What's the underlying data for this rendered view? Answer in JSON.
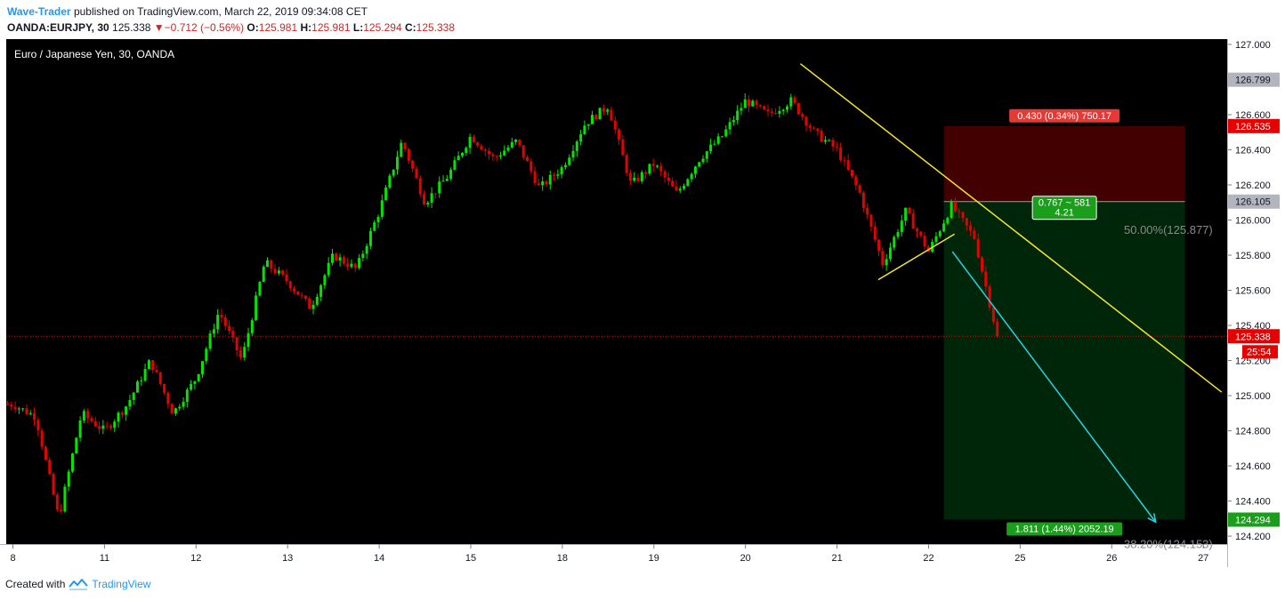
{
  "header": {
    "author": "Wave-Trader",
    "published_text": "published on TradingView.com, March 22, 2019 09:34:08 CET",
    "symbol_text": "OANDA:EURJPY, 30",
    "last_price": "125.338",
    "change_arrow": "▼",
    "change_text": "−0.712 (−0.56%)",
    "open_label": "O:",
    "open": "125.981",
    "high_label": "H:",
    "high": "125.981",
    "low_label": "L:",
    "low": "125.294",
    "close_label": "C:",
    "close": "125.338"
  },
  "footer": {
    "created_text": "Created with",
    "brand": "TradingView",
    "logo_icon": "tradingview-logo-icon"
  },
  "colors": {
    "background": "#000000",
    "up": "#00e600",
    "down": "#e60000",
    "trendline": "#f5e625",
    "arrow": "#26d4e6",
    "profit_zone": "#00260a",
    "loss_zone": "#430000"
  },
  "chart_data": {
    "type": "candlestick",
    "title": "Euro / Japanese Yen, 30, OANDA",
    "x_ticks": [
      "8",
      "11",
      "12",
      "13",
      "14",
      "15",
      "18",
      "19",
      "20",
      "21",
      "22",
      "25",
      "26",
      "27"
    ],
    "y_ticks": [
      "127.000",
      "126.600",
      "126.400",
      "126.200",
      "126.000",
      "125.800",
      "125.600",
      "125.400",
      "125.200",
      "125.000",
      "124.800",
      "124.600",
      "124.400",
      "124.200"
    ],
    "ylim": [
      124.18,
      127.02
    ],
    "grid": false,
    "price_path": [
      [
        "8",
        124.95
      ],
      [
        "8",
        124.88
      ],
      [
        "8",
        124.3
      ],
      [
        "8",
        124.9
      ],
      [
        "11",
        124.8
      ],
      [
        "11",
        124.95
      ],
      [
        "11",
        125.2
      ],
      [
        "11",
        124.9
      ],
      [
        "12",
        125.1
      ],
      [
        "12",
        125.48
      ],
      [
        "12",
        125.2
      ],
      [
        "12",
        125.76
      ],
      [
        "13",
        125.65
      ],
      [
        "13",
        125.5
      ],
      [
        "13",
        125.8
      ],
      [
        "13",
        125.72
      ],
      [
        "14",
        126.05
      ],
      [
        "14",
        126.45
      ],
      [
        "14",
        126.1
      ],
      [
        "14",
        126.25
      ],
      [
        "15",
        126.48
      ],
      [
        "15",
        126.35
      ],
      [
        "15",
        126.45
      ],
      [
        "15",
        126.18
      ],
      [
        "18",
        126.3
      ],
      [
        "18",
        126.55
      ],
      [
        "18",
        126.65
      ],
      [
        "18",
        126.2
      ],
      [
        "19",
        126.32
      ],
      [
        "19",
        126.15
      ],
      [
        "19",
        126.35
      ],
      [
        "19",
        126.48
      ],
      [
        "20",
        126.68
      ],
      [
        "20",
        126.6
      ],
      [
        "20",
        126.68
      ],
      [
        "20",
        126.5
      ],
      [
        "21",
        126.4
      ],
      [
        "21",
        126.15
      ],
      [
        "21",
        125.75
      ],
      [
        "21",
        126.05
      ],
      [
        "22",
        125.82
      ],
      [
        "22",
        126.08
      ],
      [
        "22",
        125.9
      ],
      [
        "22",
        125.34
      ]
    ],
    "price_labels": [
      {
        "value": 126.799,
        "text": "126.799",
        "style": "gray"
      },
      {
        "value": 126.535,
        "text": "126.535",
        "style": "red"
      },
      {
        "value": 126.105,
        "text": "126.105",
        "style": "gray"
      },
      {
        "value": 125.338,
        "text": "125.338",
        "style": "red"
      },
      {
        "value": 124.294,
        "text": "124.294",
        "style": "green"
      }
    ],
    "countdown": "25:54",
    "current_price": 125.338,
    "position": {
      "side": "short",
      "entry": 126.105,
      "stop": 126.535,
      "target": 124.294,
      "start_day": 22.5,
      "end_day": 26.8,
      "stop_label": "0.430 (0.34%) 750.17",
      "ratio_line1": "0.767 ~ 581",
      "ratio_line2": "4.21",
      "target_label": "1.811 (1.44%) 2052.19"
    },
    "fib_labels": [
      {
        "text": "50.00%(125.877)",
        "value": 125.877
      },
      {
        "text": "38.20%(124.153)",
        "value": 124.153
      }
    ],
    "trendlines": [
      {
        "name": "descending-resistance",
        "from": [
          20.6,
          126.89
        ],
        "to": [
          27.2,
          125.02
        ]
      },
      {
        "name": "rising-support",
        "from": [
          21.45,
          125.66
        ],
        "to": [
          22.85,
          125.92
        ]
      }
    ],
    "arrow": {
      "from": [
        22.78,
        125.82
      ],
      "to": [
        26.48,
        124.28
      ]
    }
  }
}
